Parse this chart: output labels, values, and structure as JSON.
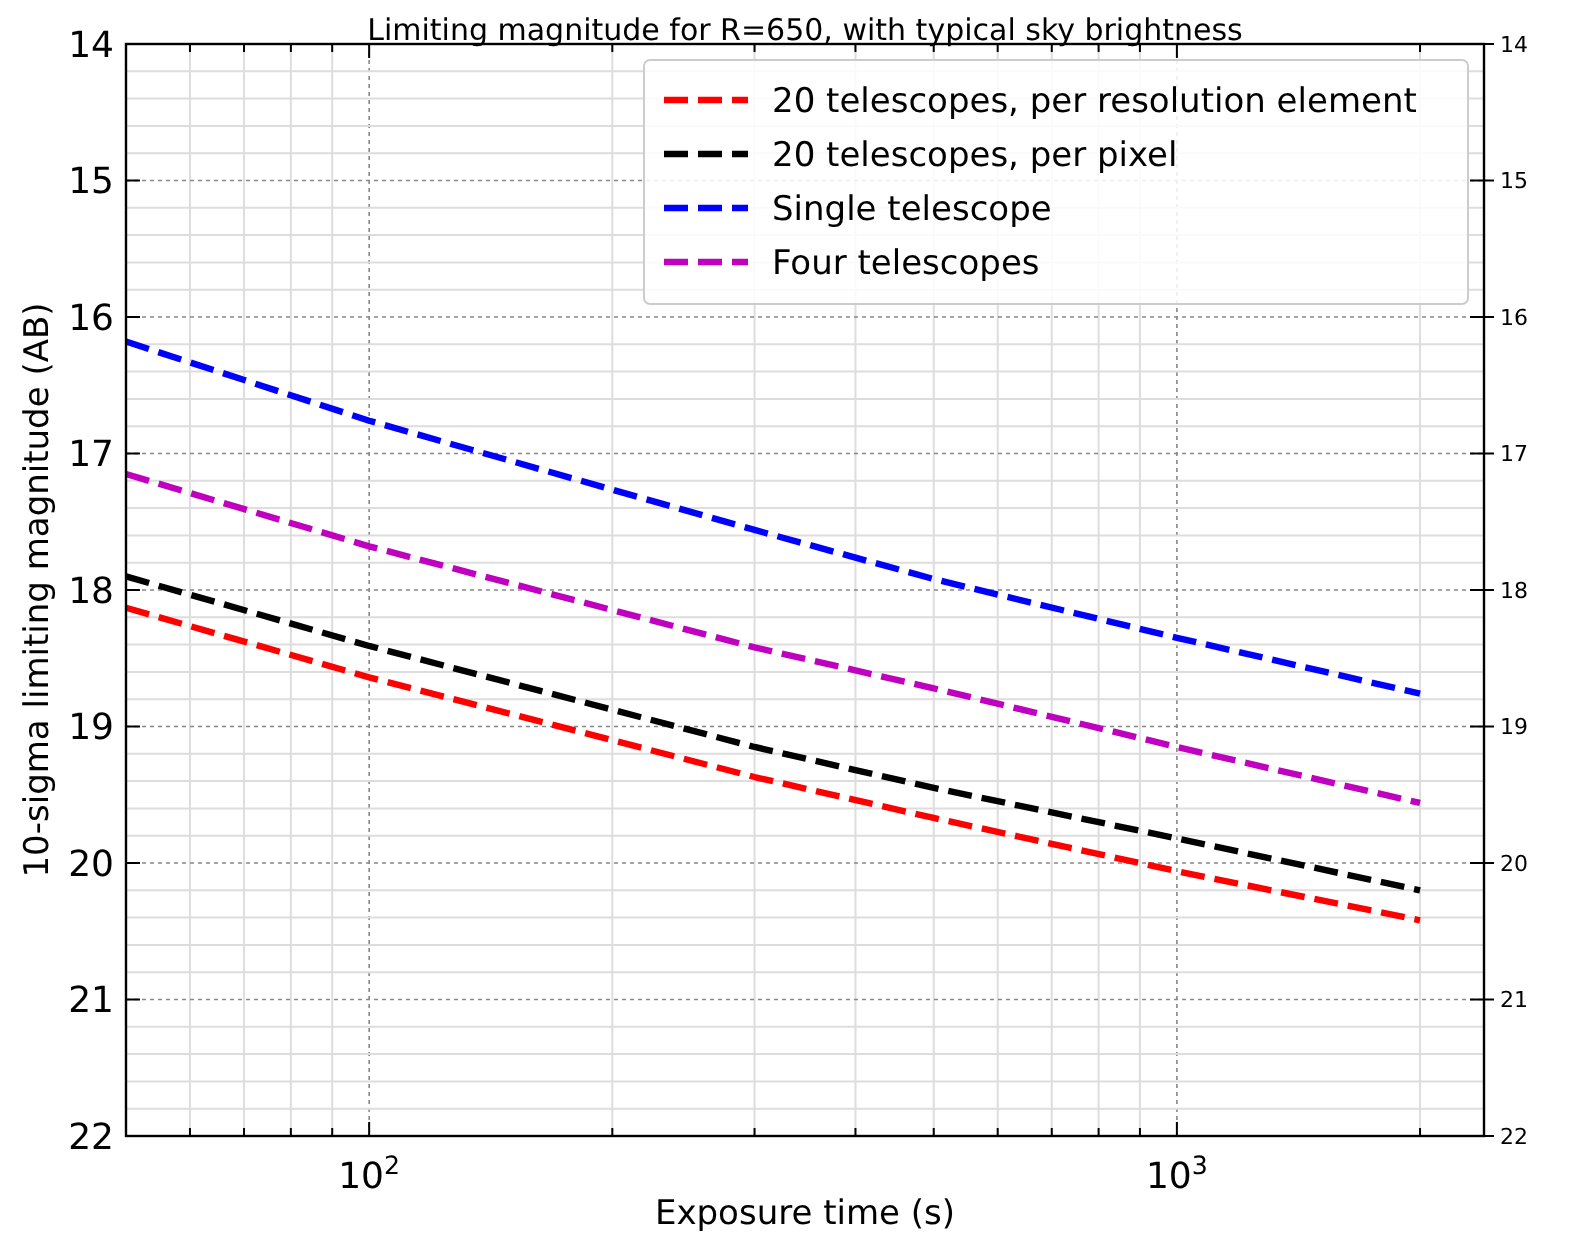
{
  "chart_data": {
    "type": "line",
    "title": "Limiting magnitude for R=650, with typical sky brightness",
    "xlabel": "Exposure time (s)",
    "ylabel": "10-sigma limiting magnitude (AB)",
    "x": [
      50,
      100,
      300,
      500,
      1000,
      2000
    ],
    "series": [
      {
        "name": "20 telescopes, per resolution element",
        "color": "#ff0000",
        "values": [
          18.13,
          18.64,
          19.37,
          19.67,
          20.06,
          20.42
        ]
      },
      {
        "name": "20 telescopes, per pixel",
        "color": "#000000",
        "values": [
          17.9,
          18.41,
          19.15,
          19.45,
          19.82,
          20.2
        ]
      },
      {
        "name": "Single telescope",
        "color": "#0000ff",
        "values": [
          16.18,
          16.76,
          17.56,
          17.92,
          18.35,
          18.76
        ]
      },
      {
        "name": "Four telescopes",
        "color": "#bf00bf",
        "values": [
          17.15,
          17.68,
          18.42,
          18.72,
          19.15,
          19.56
        ]
      }
    ],
    "log": "x",
    "xlim": [
      50,
      2400
    ],
    "xticks": [
      {
        "value": 60,
        "label": null
      },
      {
        "value": 70,
        "label": null
      },
      {
        "value": 80,
        "label": null
      },
      {
        "value": 90,
        "label": null
      },
      {
        "value": 100,
        "label": "10$^{2}$"
      },
      {
        "value": 200,
        "label": null
      },
      {
        "value": 300,
        "label": null
      },
      {
        "value": 400,
        "label": null
      },
      {
        "value": 500,
        "label": null
      },
      {
        "value": 600,
        "label": null
      },
      {
        "value": 700,
        "label": null
      },
      {
        "value": 800,
        "label": null
      },
      {
        "value": 900,
        "label": null
      },
      {
        "value": 1000,
        "label": "10$^{3}$"
      },
      {
        "value": 2000,
        "label": null
      }
    ],
    "ylim": [
      22,
      14
    ],
    "yticks": [
      14,
      15,
      16,
      17,
      18,
      19,
      20,
      21,
      22
    ],
    "y2lim": [
      22,
      14
    ],
    "y2ticks": [
      14,
      15,
      16,
      17,
      18,
      19,
      20,
      21,
      22
    ],
    "grid": true,
    "legend": "top right",
    "line_style": "dashed",
    "marker": "none"
  }
}
